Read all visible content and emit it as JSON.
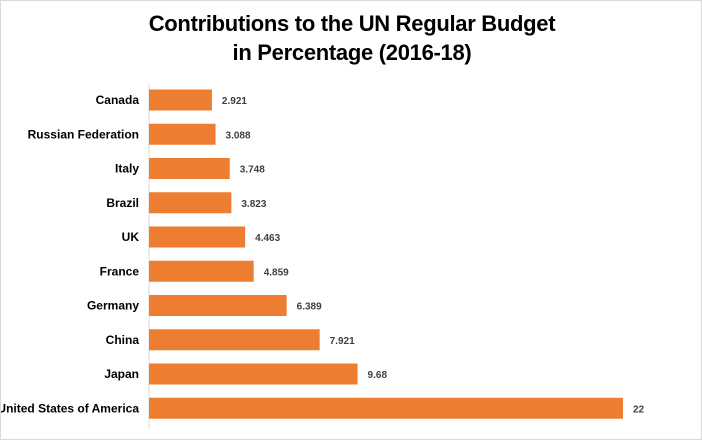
{
  "chart_data": {
    "type": "bar",
    "orientation": "horizontal",
    "title": "Contributions to the UN Regular Budget",
    "subtitle": "in Percentage (2016-18)",
    "categories": [
      "Canada",
      "Russian Federation",
      "Italy",
      "Brazil",
      "UK",
      "France",
      "Germany",
      "China",
      "Japan",
      "United States of America"
    ],
    "values": [
      2.921,
      3.088,
      3.748,
      3.823,
      4.463,
      4.859,
      6.389,
      7.921,
      9.68,
      22
    ],
    "value_labels": [
      "2.921",
      "3.088",
      "3.748",
      "3.823",
      "4.463",
      "4.859",
      "6.389",
      "7.921",
      "9.68",
      "22"
    ],
    "xlim": [
      0,
      22
    ],
    "grid": false,
    "legend": "none",
    "bar_color": "#ED7D31"
  }
}
